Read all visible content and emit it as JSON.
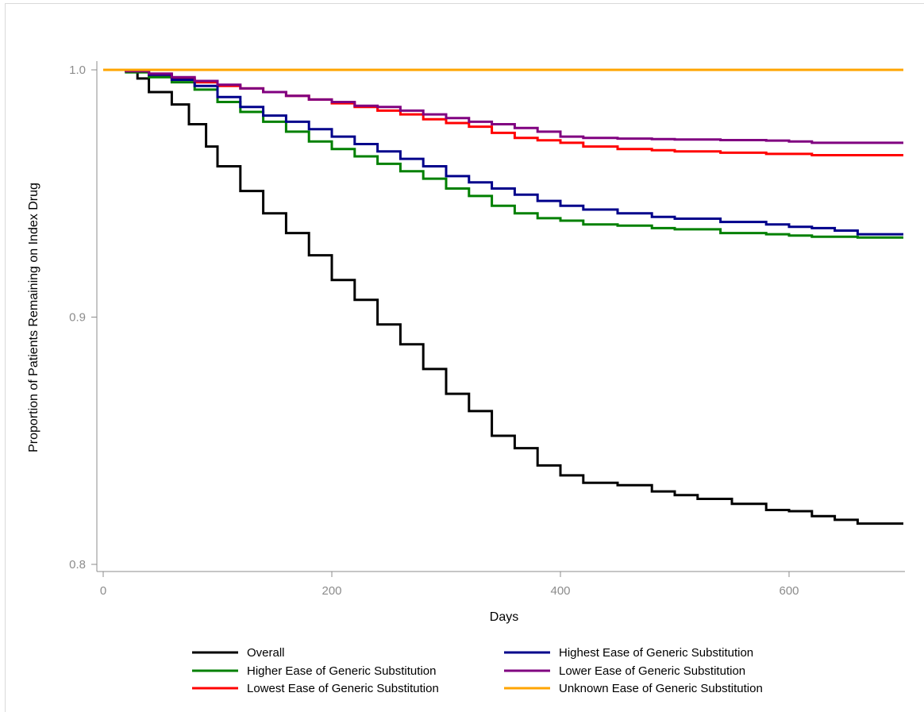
{
  "chart_data": {
    "type": "line",
    "title": "",
    "xlabel": "Days",
    "ylabel": "Proportion of Patients Remaining on Index Drug",
    "xlim": [
      0,
      700
    ],
    "ylim": [
      0.8,
      1.0
    ],
    "x_ticks": [
      0,
      200,
      400,
      600
    ],
    "x_tick_labels": [
      "0",
      "200",
      "400",
      "600"
    ],
    "y_ticks": [
      0.8,
      0.9,
      1.0
    ],
    "y_tick_labels": [
      "0.8",
      "0.9",
      "1.0"
    ],
    "grid": false,
    "legend_position": "bottom",
    "series": [
      {
        "name": "Overall",
        "color": "#000000",
        "points": [
          [
            0,
            1.0
          ],
          [
            20,
            0.9995
          ],
          [
            30,
            0.9965
          ],
          [
            40,
            0.991
          ],
          [
            60,
            0.986
          ],
          [
            75,
            0.978
          ],
          [
            90,
            0.969
          ],
          [
            100,
            0.961
          ],
          [
            120,
            0.951
          ],
          [
            140,
            0.942
          ],
          [
            160,
            0.934
          ],
          [
            180,
            0.925
          ],
          [
            200,
            0.915
          ],
          [
            220,
            0.907
          ],
          [
            240,
            0.897
          ],
          [
            260,
            0.889
          ],
          [
            280,
            0.879
          ],
          [
            300,
            0.869
          ],
          [
            320,
            0.862
          ],
          [
            340,
            0.852
          ],
          [
            360,
            0.847
          ],
          [
            380,
            0.84
          ],
          [
            400,
            0.836
          ],
          [
            420,
            0.833
          ],
          [
            450,
            0.832
          ],
          [
            480,
            0.8295
          ],
          [
            500,
            0.828
          ],
          [
            520,
            0.8265
          ],
          [
            550,
            0.8245
          ],
          [
            580,
            0.822
          ],
          [
            600,
            0.8215
          ],
          [
            620,
            0.8195
          ],
          [
            640,
            0.818
          ],
          [
            660,
            0.8165
          ],
          [
            700,
            0.8165
          ]
        ]
      },
      {
        "name": "Higher Ease of Generic Substitution",
        "color": "#008000",
        "points": [
          [
            0,
            1.0
          ],
          [
            20,
            0.999
          ],
          [
            40,
            0.997
          ],
          [
            60,
            0.995
          ],
          [
            80,
            0.992
          ],
          [
            100,
            0.987
          ],
          [
            120,
            0.983
          ],
          [
            140,
            0.979
          ],
          [
            160,
            0.975
          ],
          [
            180,
            0.971
          ],
          [
            200,
            0.968
          ],
          [
            220,
            0.965
          ],
          [
            240,
            0.962
          ],
          [
            260,
            0.959
          ],
          [
            280,
            0.956
          ],
          [
            300,
            0.952
          ],
          [
            320,
            0.949
          ],
          [
            340,
            0.945
          ],
          [
            360,
            0.942
          ],
          [
            380,
            0.94
          ],
          [
            400,
            0.939
          ],
          [
            420,
            0.9375
          ],
          [
            450,
            0.937
          ],
          [
            480,
            0.936
          ],
          [
            500,
            0.9355
          ],
          [
            540,
            0.934
          ],
          [
            580,
            0.9335
          ],
          [
            600,
            0.933
          ],
          [
            620,
            0.9325
          ],
          [
            660,
            0.9322
          ],
          [
            700,
            0.9322
          ]
        ]
      },
      {
        "name": "Lowest Ease of Generic Substitution",
        "color": "#ff0000",
        "points": [
          [
            0,
            1.0
          ],
          [
            20,
            0.9995
          ],
          [
            40,
            0.998
          ],
          [
            60,
            0.9965
          ],
          [
            80,
            0.995
          ],
          [
            100,
            0.9935
          ],
          [
            120,
            0.9925
          ],
          [
            140,
            0.991
          ],
          [
            160,
            0.9895
          ],
          [
            180,
            0.988
          ],
          [
            200,
            0.9865
          ],
          [
            220,
            0.985
          ],
          [
            240,
            0.9835
          ],
          [
            260,
            0.982
          ],
          [
            280,
            0.98
          ],
          [
            300,
            0.9785
          ],
          [
            320,
            0.977
          ],
          [
            340,
            0.9745
          ],
          [
            360,
            0.9725
          ],
          [
            380,
            0.9715
          ],
          [
            400,
            0.9705
          ],
          [
            420,
            0.969
          ],
          [
            450,
            0.968
          ],
          [
            480,
            0.9675
          ],
          [
            500,
            0.967
          ],
          [
            540,
            0.9665
          ],
          [
            580,
            0.966
          ],
          [
            620,
            0.9655
          ],
          [
            700,
            0.9655
          ]
        ]
      },
      {
        "name": "Highest Ease of Generic Substitution",
        "color": "#00008b",
        "points": [
          [
            0,
            1.0
          ],
          [
            20,
            0.9995
          ],
          [
            40,
            0.998
          ],
          [
            60,
            0.996
          ],
          [
            80,
            0.9935
          ],
          [
            100,
            0.989
          ],
          [
            120,
            0.985
          ],
          [
            140,
            0.9815
          ],
          [
            160,
            0.979
          ],
          [
            180,
            0.976
          ],
          [
            200,
            0.973
          ],
          [
            220,
            0.97
          ],
          [
            240,
            0.967
          ],
          [
            260,
            0.964
          ],
          [
            280,
            0.961
          ],
          [
            300,
            0.957
          ],
          [
            320,
            0.9545
          ],
          [
            340,
            0.952
          ],
          [
            360,
            0.9495
          ],
          [
            380,
            0.947
          ],
          [
            400,
            0.945
          ],
          [
            420,
            0.9435
          ],
          [
            450,
            0.942
          ],
          [
            480,
            0.9405
          ],
          [
            500,
            0.9398
          ],
          [
            540,
            0.9385
          ],
          [
            580,
            0.9375
          ],
          [
            600,
            0.9365
          ],
          [
            620,
            0.936
          ],
          [
            640,
            0.935
          ],
          [
            660,
            0.9335
          ],
          [
            700,
            0.9335
          ]
        ]
      },
      {
        "name": "Lower Ease of Generic Substitution",
        "color": "#800080",
        "points": [
          [
            0,
            1.0
          ],
          [
            20,
            0.9995
          ],
          [
            40,
            0.9985
          ],
          [
            60,
            0.997
          ],
          [
            80,
            0.9955
          ],
          [
            100,
            0.994
          ],
          [
            120,
            0.9925
          ],
          [
            140,
            0.991
          ],
          [
            160,
            0.9895
          ],
          [
            180,
            0.988
          ],
          [
            200,
            0.987
          ],
          [
            220,
            0.9855
          ],
          [
            240,
            0.985
          ],
          [
            260,
            0.9835
          ],
          [
            280,
            0.982
          ],
          [
            300,
            0.9805
          ],
          [
            320,
            0.979
          ],
          [
            340,
            0.978
          ],
          [
            360,
            0.9765
          ],
          [
            380,
            0.975
          ],
          [
            400,
            0.973
          ],
          [
            420,
            0.9725
          ],
          [
            450,
            0.9722
          ],
          [
            480,
            0.972
          ],
          [
            500,
            0.9718
          ],
          [
            540,
            0.9716
          ],
          [
            580,
            0.9714
          ],
          [
            600,
            0.971
          ],
          [
            620,
            0.9705
          ],
          [
            700,
            0.9705
          ]
        ]
      },
      {
        "name": "Unknown Ease of Generic Substitution",
        "color": "#ffa500",
        "points": [
          [
            0,
            1.0
          ],
          [
            700,
            1.0
          ]
        ]
      }
    ],
    "legend_order": [
      "Overall",
      "Highest Ease of Generic Substitution",
      "Higher Ease of Generic Substitution",
      "Lower Ease of Generic Substitution",
      "Lowest Ease of Generic Substitution",
      "Unknown Ease of Generic Substitution"
    ]
  }
}
